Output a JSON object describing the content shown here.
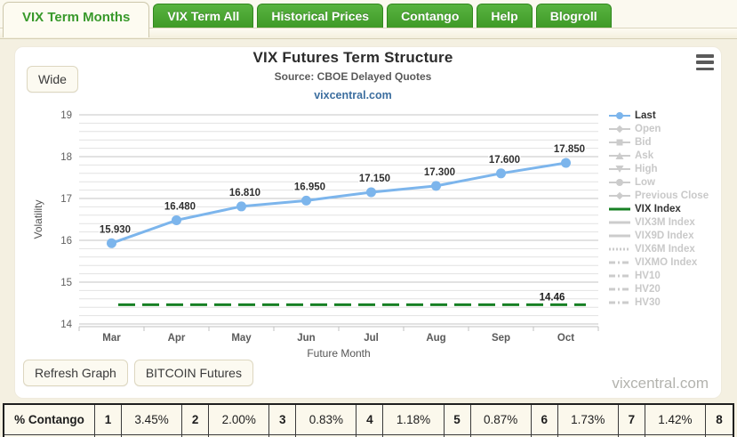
{
  "tabs": [
    {
      "label": "VIX Term Months",
      "active": true
    },
    {
      "label": "VIX Term All",
      "active": false
    },
    {
      "label": "Historical Prices",
      "active": false
    },
    {
      "label": "Contango",
      "active": false
    },
    {
      "label": "Help",
      "active": false
    },
    {
      "label": "Blogroll",
      "active": false
    }
  ],
  "toolbar": {
    "wide_label": "Wide"
  },
  "header": {
    "title": "VIX Futures Term Structure",
    "subtitle": "Source: CBOE Delayed Quotes",
    "link": "vixcentral.com"
  },
  "chart_data": {
    "type": "line",
    "title": "VIX Futures Term Structure",
    "subtitle": "Source: CBOE Delayed Quotes",
    "xlabel": "Future Month",
    "ylabel": "Volatility",
    "ylim": [
      14,
      19
    ],
    "y_major_ticks": [
      14,
      15,
      16,
      17,
      18,
      19
    ],
    "y_minor_step": 0.2,
    "grid": true,
    "legend_position": "right",
    "categories": [
      "Mar",
      "Apr",
      "May",
      "Jun",
      "Jul",
      "Aug",
      "Sep",
      "Oct"
    ],
    "series": [
      {
        "name": "Last",
        "color": "#7cb5ec",
        "values": [
          15.93,
          16.48,
          16.81,
          16.95,
          17.15,
          17.3,
          17.6,
          17.85
        ],
        "point_labels": [
          "15.930",
          "16.480",
          "16.810",
          "16.950",
          "17.150",
          "17.300",
          "17.600",
          "17.850"
        ]
      }
    ],
    "reference_line": {
      "name": "VIX Index",
      "value": 14.46,
      "label": "14.46",
      "color": "#178024",
      "style": "dashed"
    }
  },
  "legend": {
    "items": [
      {
        "label": "Last",
        "marker": "circle",
        "line": "solid",
        "color": "#7cb5ec",
        "enabled": true
      },
      {
        "label": "Open",
        "marker": "diamond",
        "line": "solid",
        "color": "#cccccc",
        "enabled": false
      },
      {
        "label": "Bid",
        "marker": "square",
        "line": "solid",
        "color": "#cccccc",
        "enabled": false
      },
      {
        "label": "Ask",
        "marker": "triangle-up",
        "line": "solid",
        "color": "#cccccc",
        "enabled": false
      },
      {
        "label": "High",
        "marker": "triangle-down",
        "line": "solid",
        "color": "#cccccc",
        "enabled": false
      },
      {
        "label": "Low",
        "marker": "circle",
        "line": "solid",
        "color": "#cccccc",
        "enabled": false
      },
      {
        "label": "Previous Close",
        "marker": "diamond",
        "line": "solid",
        "color": "#cccccc",
        "enabled": false
      },
      {
        "label": "VIX Index",
        "marker": "line",
        "line": "solid",
        "color": "#178024",
        "enabled": true
      },
      {
        "label": "VIX3M Index",
        "marker": "line",
        "line": "solid",
        "color": "#cccccc",
        "enabled": false
      },
      {
        "label": "VIX9D Index",
        "marker": "line",
        "line": "solid",
        "color": "#cccccc",
        "enabled": false
      },
      {
        "label": "VIX6M Index",
        "marker": "line",
        "line": "dotted",
        "color": "#cccccc",
        "enabled": false
      },
      {
        "label": "VIXMO Index",
        "marker": "line",
        "line": "dashdot",
        "color": "#cccccc",
        "enabled": false
      },
      {
        "label": "HV10",
        "marker": "line",
        "line": "dashdot",
        "color": "#cccccc",
        "enabled": false
      },
      {
        "label": "HV20",
        "marker": "line",
        "line": "dashdot",
        "color": "#cccccc",
        "enabled": false
      },
      {
        "label": "HV30",
        "marker": "line",
        "line": "dashdot",
        "color": "#cccccc",
        "enabled": false
      }
    ]
  },
  "buttons": {
    "refresh": "Refresh Graph",
    "bitcoin": "BITCOIN Futures"
  },
  "watermark": "vixcentral.com",
  "contango_table": {
    "row_label": "% Contango",
    "cells": [
      "1",
      "3.45%",
      "2",
      "2.00%",
      "3",
      "0.83%",
      "4",
      "1.18%",
      "5",
      "0.87%",
      "6",
      "1.73%",
      "7",
      "1.42%",
      "8"
    ]
  },
  "colors": {
    "tab_green": "#47a630",
    "series_blue": "#7cb5ec",
    "vix_green": "#178024",
    "page_bg": "#f4f0e1",
    "link_blue": "#3c6e9f"
  }
}
